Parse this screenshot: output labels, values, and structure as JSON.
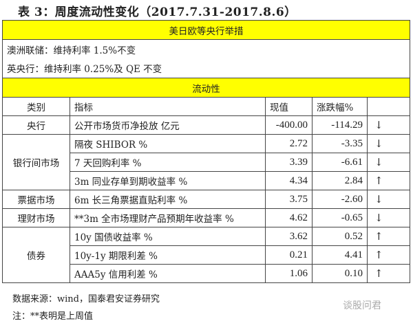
{
  "title": "表 3：周度流动性变化（2017.7.31-2017.8.6）",
  "section1": {
    "header": "美日欧等央行举措",
    "lines": [
      "澳洲联储：维持利率 1.5%不变",
      "英央行：维持利率 0.25%及 QE 不变"
    ]
  },
  "section2": {
    "header": "流动性"
  },
  "columns": [
    "类别",
    "指标",
    "现值",
    "涨跌幅%",
    ""
  ],
  "rows": [
    {
      "category": "央行",
      "indicator": "公开市场货币净投放 亿元",
      "value": "-400.00",
      "change": "-114.29",
      "arrow": "↓"
    },
    {
      "category": "银行间市场",
      "indicator": "隔夜 SHIBOR %",
      "value": "2.72",
      "change": "-3.35",
      "arrow": "↓"
    },
    {
      "category": "",
      "indicator": "7 天回购利率 %",
      "value": "3.39",
      "change": "-6.61",
      "arrow": "↓"
    },
    {
      "category": "",
      "indicator": "3m 同业存单到期收益率 %",
      "value": "4.34",
      "change": "2.84",
      "arrow": "↑"
    },
    {
      "category": "票据市场",
      "indicator": "6m 长三角票据直贴利率 %",
      "value": "3.75",
      "change": "-2.60",
      "arrow": "↓"
    },
    {
      "category": "理财市场",
      "indicator": "**3m 全市场理财产品预期年收益率 %",
      "value": "4.62",
      "change": "-0.65",
      "arrow": "↓"
    },
    {
      "category": "债券",
      "indicator": "10y 国债收益率 %",
      "value": "3.62",
      "change": "0.52",
      "arrow": "↑"
    },
    {
      "category": "",
      "indicator": "10y-1y 期限利差 %",
      "value": "0.21",
      "change": "4.41",
      "arrow": "↑"
    },
    {
      "category": "",
      "indicator": "AAA5y 信用利差 %",
      "value": "1.06",
      "change": "0.10",
      "arrow": "↑"
    }
  ],
  "footer": {
    "source": "数据来源：wind，国泰君安证券研究",
    "note": "注：**表明是上周值"
  },
  "watermark": "谈股问君",
  "colors": {
    "header_bg": "#ffff00"
  }
}
